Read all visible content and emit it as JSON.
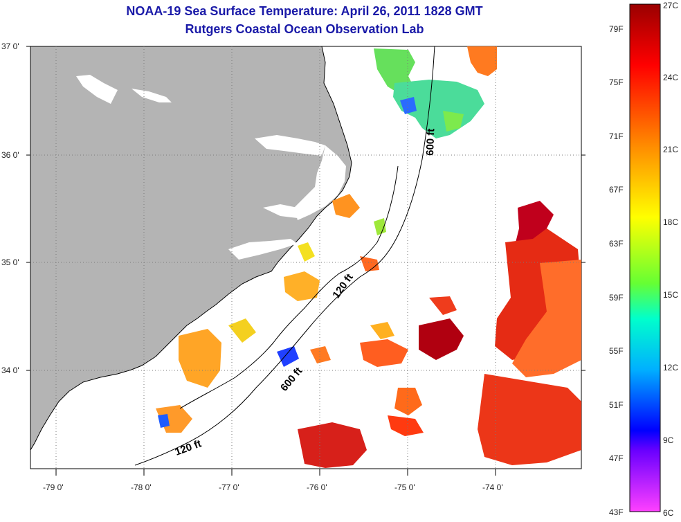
{
  "header": {
    "title": "NOAA-19 Sea Surface Temperature:  April 26, 2011 1828 GMT",
    "subtitle": "Rutgers Coastal Ocean Observation Lab"
  },
  "map": {
    "lat_labels": [
      "37 0'",
      "36 0'",
      "35 0'",
      "34 0'"
    ],
    "lon_labels": [
      "-79 0'",
      "-78 0'",
      "-77 0'",
      "-76 0'",
      "-75 0'",
      "-74 0'"
    ],
    "isobath_labels": [
      "600 ft",
      "120 ft",
      "600 ft",
      "120 ft"
    ],
    "land_color": "#b4b4b4",
    "shelf_line_color": "#000000"
  },
  "colorbar": {
    "fahrenheit_labels": [
      "79F",
      "75F",
      "71F",
      "67F",
      "63F",
      "59F",
      "55F",
      "51F",
      "47F",
      "43F"
    ],
    "celsius_labels": [
      "27C",
      "24C",
      "21C",
      "18C",
      "15C",
      "12C",
      "9C",
      "6C"
    ],
    "colors": [
      "#a00000",
      "#ff0000",
      "#ff8000",
      "#ffff00",
      "#80ff00",
      "#00ffff",
      "#0060ff",
      "#0000ff",
      "#8000ff",
      "#ff40ff"
    ]
  }
}
